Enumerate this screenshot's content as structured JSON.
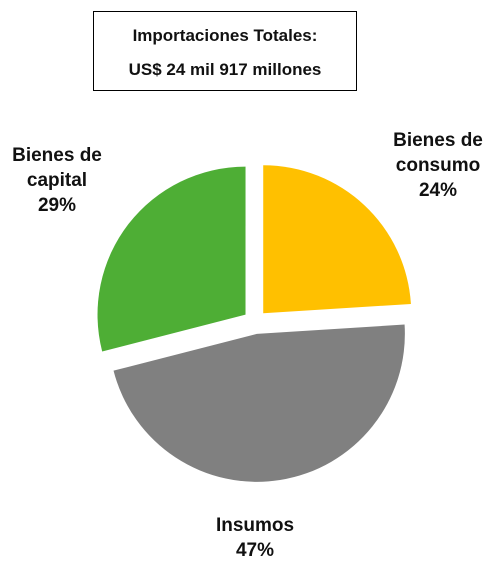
{
  "chart_data": {
    "type": "pie",
    "title": "Importaciones Totales:",
    "subtitle": "US$ 24 mil 917 millones",
    "categories": [
      "Bienes de consumo",
      "Insumos",
      "Bienes de capital"
    ],
    "values": [
      24,
      47,
      29
    ],
    "value_labels": [
      "24%",
      "47%",
      "29%"
    ],
    "colors": [
      "#FFC000",
      "#808080",
      "#4EAE35"
    ]
  }
}
